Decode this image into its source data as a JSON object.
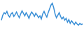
{
  "chart_data": {
    "type": "line",
    "values": [
      15,
      23,
      27,
      25,
      29,
      23,
      20,
      25,
      27,
      21,
      24,
      28,
      23,
      19,
      25,
      30,
      26,
      22,
      27,
      23,
      18,
      24,
      28,
      25,
      21,
      26,
      23,
      19,
      22,
      17,
      25,
      29,
      24,
      20,
      27,
      33,
      39,
      42,
      35,
      25,
      19,
      23,
      27,
      21,
      17,
      20,
      15,
      18,
      12,
      16,
      10,
      14,
      11,
      8,
      12,
      9,
      7,
      10,
      8,
      9
    ],
    "ylim": [
      0,
      45
    ],
    "color": "#3a8fd6",
    "tick_labels": false,
    "grid": false
  }
}
